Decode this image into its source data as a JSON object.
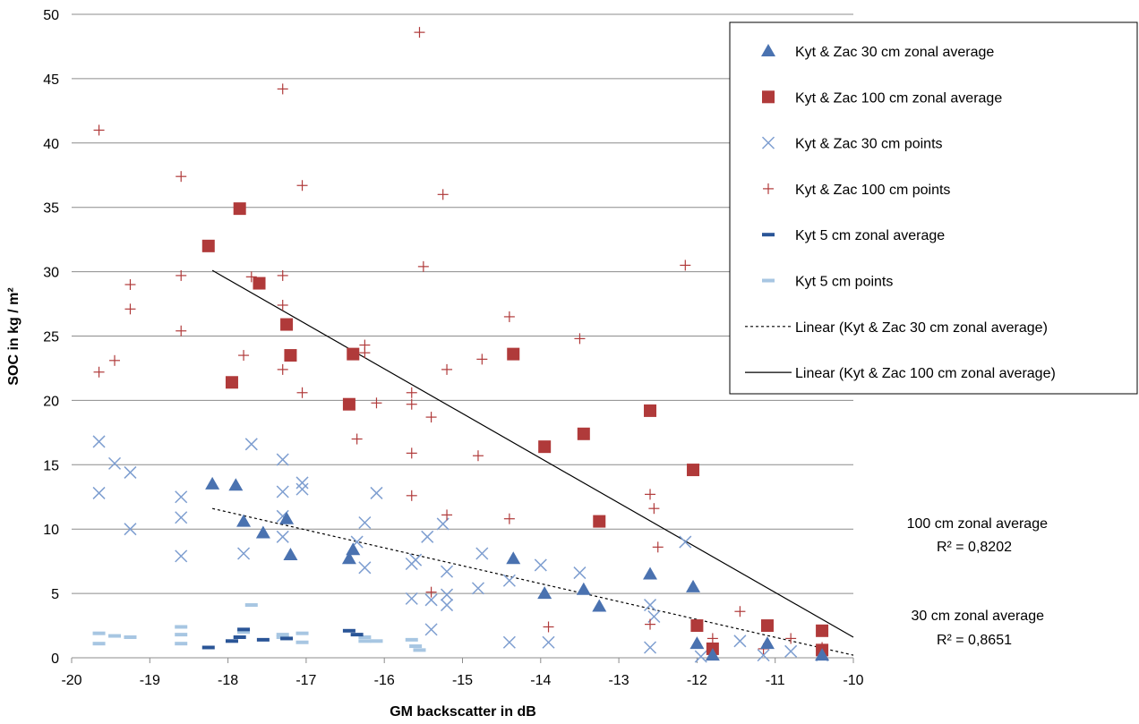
{
  "chart_data": {
    "type": "scatter",
    "title": "",
    "xlabel": "GM backscatter in dB",
    "ylabel": "SOC in kg / m²",
    "xlim": [
      -20,
      -10
    ],
    "ylim": [
      0,
      50
    ],
    "x_ticks": [
      "-20",
      "-19",
      "-18",
      "-17",
      "-16",
      "-15",
      "-14",
      "-13",
      "-12",
      "-11",
      "-10"
    ],
    "y_ticks": [
      "0",
      "5",
      "10",
      "15",
      "20",
      "25",
      "30",
      "35",
      "40",
      "45",
      "50"
    ],
    "grid": "horizontal",
    "legend_position": "top-right",
    "series": [
      {
        "name": "Kyt & Zac 30 cm zonal average",
        "marker": "triangle",
        "color": "#4A72B0",
        "points": [
          [
            -18.2,
            13.5
          ],
          [
            -17.9,
            13.4
          ],
          [
            -17.8,
            10.6
          ],
          [
            -17.55,
            9.7
          ],
          [
            -17.25,
            10.8
          ],
          [
            -17.2,
            8.0
          ],
          [
            -16.45,
            7.7
          ],
          [
            -16.4,
            8.4
          ],
          [
            -14.35,
            7.7
          ],
          [
            -13.95,
            5.0
          ],
          [
            -13.45,
            5.3
          ],
          [
            -13.25,
            4.0
          ],
          [
            -12.6,
            6.5
          ],
          [
            -12.05,
            5.5
          ],
          [
            -12.0,
            1.1
          ],
          [
            -11.8,
            0.2
          ],
          [
            -11.1,
            1.1
          ],
          [
            -10.4,
            0.2
          ]
        ]
      },
      {
        "name": "Kyt & Zac 100 cm zonal average",
        "marker": "square",
        "color": "#B03A3A",
        "points": [
          [
            -18.25,
            32.0
          ],
          [
            -17.85,
            34.9
          ],
          [
            -17.6,
            29.1
          ],
          [
            -17.25,
            25.9
          ],
          [
            -17.2,
            23.5
          ],
          [
            -17.95,
            21.4
          ],
          [
            -16.4,
            23.6
          ],
          [
            -16.45,
            19.7
          ],
          [
            -14.35,
            23.6
          ],
          [
            -13.95,
            16.4
          ],
          [
            -13.45,
            17.4
          ],
          [
            -13.25,
            10.6
          ],
          [
            -12.6,
            19.2
          ],
          [
            -12.05,
            14.6
          ],
          [
            -12.0,
            2.5
          ],
          [
            -11.8,
            0.7
          ],
          [
            -11.1,
            2.5
          ],
          [
            -10.4,
            2.1
          ],
          [
            -10.4,
            0.6
          ]
        ]
      },
      {
        "name": "Kyt & Zac 30 cm points",
        "marker": "x",
        "color": "#7E9ED0",
        "points": [
          [
            -19.65,
            16.8
          ],
          [
            -19.45,
            15.1
          ],
          [
            -19.25,
            14.4
          ],
          [
            -19.65,
            12.8
          ],
          [
            -19.25,
            10.0
          ],
          [
            -18.6,
            12.5
          ],
          [
            -18.6,
            10.9
          ],
          [
            -18.6,
            7.9
          ],
          [
            -17.8,
            8.1
          ],
          [
            -17.7,
            16.6
          ],
          [
            -17.3,
            15.4
          ],
          [
            -17.3,
            12.9
          ],
          [
            -17.3,
            11.0
          ],
          [
            -17.3,
            9.4
          ],
          [
            -17.05,
            13.6
          ],
          [
            -17.05,
            13.1
          ],
          [
            -16.35,
            9.0
          ],
          [
            -16.25,
            10.5
          ],
          [
            -16.25,
            7.0
          ],
          [
            -16.1,
            12.8
          ],
          [
            -15.65,
            7.3
          ],
          [
            -15.6,
            7.6
          ],
          [
            -15.65,
            4.6
          ],
          [
            -15.45,
            9.4
          ],
          [
            -15.4,
            4.5
          ],
          [
            -15.4,
            2.2
          ],
          [
            -15.25,
            10.4
          ],
          [
            -15.2,
            6.7
          ],
          [
            -15.2,
            4.9
          ],
          [
            -15.2,
            4.1
          ],
          [
            -14.8,
            5.4
          ],
          [
            -14.75,
            8.1
          ],
          [
            -14.4,
            6.0
          ],
          [
            -14.4,
            1.2
          ],
          [
            -14.0,
            7.2
          ],
          [
            -13.9,
            1.2
          ],
          [
            -13.5,
            6.6
          ],
          [
            -12.6,
            4.1
          ],
          [
            -12.55,
            3.2
          ],
          [
            -12.6,
            0.8
          ],
          [
            -12.15,
            9.0
          ],
          [
            -11.95,
            0.1
          ],
          [
            -11.45,
            1.3
          ],
          [
            -11.15,
            0.2
          ],
          [
            -10.8,
            0.5
          ],
          [
            -10.4,
            0.2
          ]
        ]
      },
      {
        "name": "Kyt & Zac 100 cm points",
        "marker": "plus",
        "color": "#B03A3A",
        "points": [
          [
            -19.65,
            41.0
          ],
          [
            -19.65,
            22.2
          ],
          [
            -19.45,
            23.1
          ],
          [
            -19.25,
            29.0
          ],
          [
            -19.25,
            27.1
          ],
          [
            -18.6,
            37.4
          ],
          [
            -18.6,
            29.7
          ],
          [
            -18.6,
            25.4
          ],
          [
            -17.8,
            23.5
          ],
          [
            -17.7,
            29.6
          ],
          [
            -17.3,
            44.2
          ],
          [
            -17.3,
            29.7
          ],
          [
            -17.3,
            27.4
          ],
          [
            -17.3,
            22.4
          ],
          [
            -17.05,
            36.7
          ],
          [
            -17.05,
            20.6
          ],
          [
            -16.35,
            17.0
          ],
          [
            -16.25,
            24.3
          ],
          [
            -16.25,
            23.7
          ],
          [
            -16.1,
            19.8
          ],
          [
            -15.65,
            20.6
          ],
          [
            -15.65,
            19.7
          ],
          [
            -15.65,
            15.9
          ],
          [
            -15.65,
            12.6
          ],
          [
            -15.55,
            48.6
          ],
          [
            -15.5,
            30.4
          ],
          [
            -15.4,
            18.7
          ],
          [
            -15.4,
            5.1
          ],
          [
            -15.25,
            36.0
          ],
          [
            -15.2,
            22.4
          ],
          [
            -15.2,
            11.1
          ],
          [
            -14.8,
            15.7
          ],
          [
            -14.75,
            23.2
          ],
          [
            -14.4,
            26.5
          ],
          [
            -14.4,
            10.8
          ],
          [
            -13.9,
            2.4
          ],
          [
            -13.5,
            24.8
          ],
          [
            -12.6,
            12.7
          ],
          [
            -12.55,
            11.6
          ],
          [
            -12.5,
            8.6
          ],
          [
            -12.6,
            2.6
          ],
          [
            -12.15,
            30.5
          ],
          [
            -11.8,
            1.5
          ],
          [
            -11.45,
            3.6
          ],
          [
            -11.15,
            0.7
          ],
          [
            -10.8,
            1.5
          ],
          [
            -10.4,
            0.8
          ]
        ]
      },
      {
        "name": "Kyt 5 cm zonal average",
        "marker": "dash",
        "color": "#2A5597",
        "points": [
          [
            -18.25,
            0.8
          ],
          [
            -17.95,
            1.3
          ],
          [
            -17.85,
            1.6
          ],
          [
            -17.8,
            2.2
          ],
          [
            -17.55,
            1.4
          ],
          [
            -17.25,
            1.5
          ],
          [
            -16.45,
            2.1
          ],
          [
            -16.35,
            1.8
          ]
        ]
      },
      {
        "name": "Kyt 5 cm points",
        "marker": "dash",
        "color": "#A7C6E2",
        "points": [
          [
            -19.65,
            1.9
          ],
          [
            -19.65,
            1.1
          ],
          [
            -19.45,
            1.7
          ],
          [
            -19.25,
            1.6
          ],
          [
            -18.6,
            2.4
          ],
          [
            -18.6,
            1.8
          ],
          [
            -18.6,
            1.1
          ],
          [
            -17.8,
            2.0
          ],
          [
            -17.7,
            4.1
          ],
          [
            -17.3,
            1.8
          ],
          [
            -17.3,
            1.6
          ],
          [
            -17.05,
            1.9
          ],
          [
            -17.05,
            1.2
          ],
          [
            -16.25,
            1.6
          ],
          [
            -16.25,
            1.3
          ],
          [
            -16.1,
            1.3
          ],
          [
            -15.65,
            1.4
          ],
          [
            -15.6,
            0.9
          ],
          [
            -15.55,
            0.6
          ]
        ]
      }
    ],
    "trendlines": [
      {
        "name": "Linear (Kyt & Zac 30 cm zonal average)",
        "style": "dashed",
        "color": "#000000",
        "start": [
          -18.2,
          11.6
        ],
        "end": [
          -10.0,
          0.2
        ]
      },
      {
        "name": "Linear (Kyt & Zac 100 cm zonal average)",
        "style": "solid",
        "color": "#000000",
        "start": [
          -18.2,
          30.1
        ],
        "end": [
          -10.0,
          1.6
        ]
      }
    ],
    "annotations": [
      {
        "label": "100 cm zonal average",
        "r2": "R² = 0,8202"
      },
      {
        "label": "30 cm zonal average",
        "r2": "R² = 0,8651"
      }
    ]
  }
}
